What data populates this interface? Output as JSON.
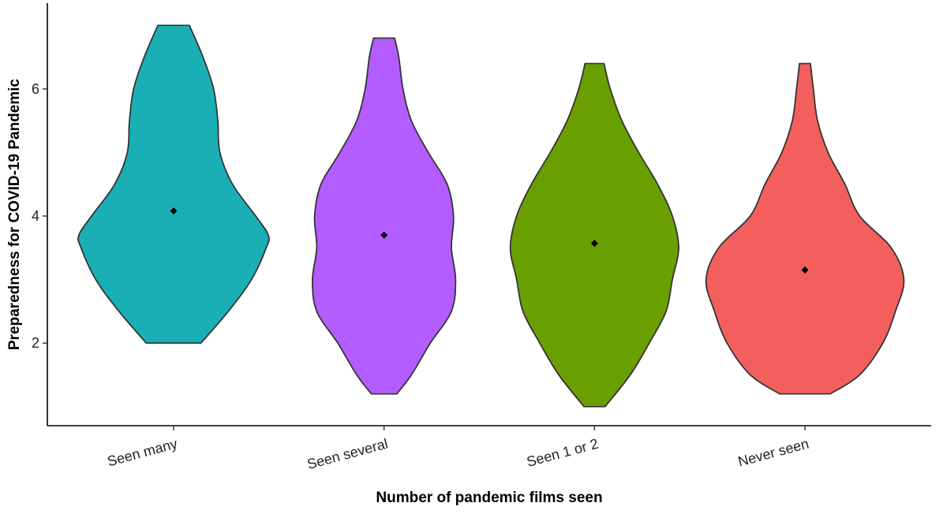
{
  "chart_data": {
    "type": "violin",
    "x_label": "Number of pandemic films seen",
    "y_label": "Preparedness for COVID-19 Pandemic",
    "categories": [
      "Seen many",
      "Seen several",
      "Seen 1 or 2",
      "Never seen"
    ],
    "series": [
      {
        "color": "#1aafb5",
        "mean": 4.08,
        "density_y": [
          2.0,
          2.5,
          3.0,
          3.5,
          3.7,
          4.0,
          4.5,
          5.0,
          5.5,
          6.0,
          6.5,
          7.0
        ],
        "density_width": [
          0.13,
          0.26,
          0.37,
          0.44,
          0.45,
          0.39,
          0.28,
          0.22,
          0.21,
          0.19,
          0.14,
          0.075
        ]
      },
      {
        "color": "#b35cff",
        "mean": 3.7,
        "density_y": [
          1.2,
          1.5,
          2.0,
          2.5,
          3.0,
          3.5,
          4.0,
          4.5,
          5.0,
          5.5,
          6.0,
          6.5,
          6.8
        ],
        "density_width": [
          0.06,
          0.13,
          0.22,
          0.32,
          0.34,
          0.32,
          0.33,
          0.3,
          0.21,
          0.13,
          0.09,
          0.07,
          0.05
        ]
      },
      {
        "color": "#6a9f00",
        "mean": 3.57,
        "density_y": [
          1.0,
          1.5,
          2.0,
          2.5,
          3.0,
          3.5,
          4.0,
          4.5,
          5.0,
          5.5,
          6.0,
          6.4
        ],
        "density_width": [
          0.05,
          0.17,
          0.26,
          0.34,
          0.37,
          0.4,
          0.37,
          0.3,
          0.21,
          0.13,
          0.075,
          0.045
        ]
      },
      {
        "color": "#f25f5c",
        "mean": 3.15,
        "density_y": [
          1.2,
          1.5,
          2.0,
          2.5,
          3.0,
          3.5,
          4.0,
          4.5,
          5.0,
          5.5,
          6.0,
          6.4
        ],
        "density_width": [
          0.12,
          0.26,
          0.37,
          0.43,
          0.47,
          0.41,
          0.26,
          0.19,
          0.11,
          0.06,
          0.04,
          0.026
        ]
      }
    ],
    "ylim": [
      0.7,
      7.35
    ],
    "yticks": [
      2,
      4,
      6
    ]
  }
}
